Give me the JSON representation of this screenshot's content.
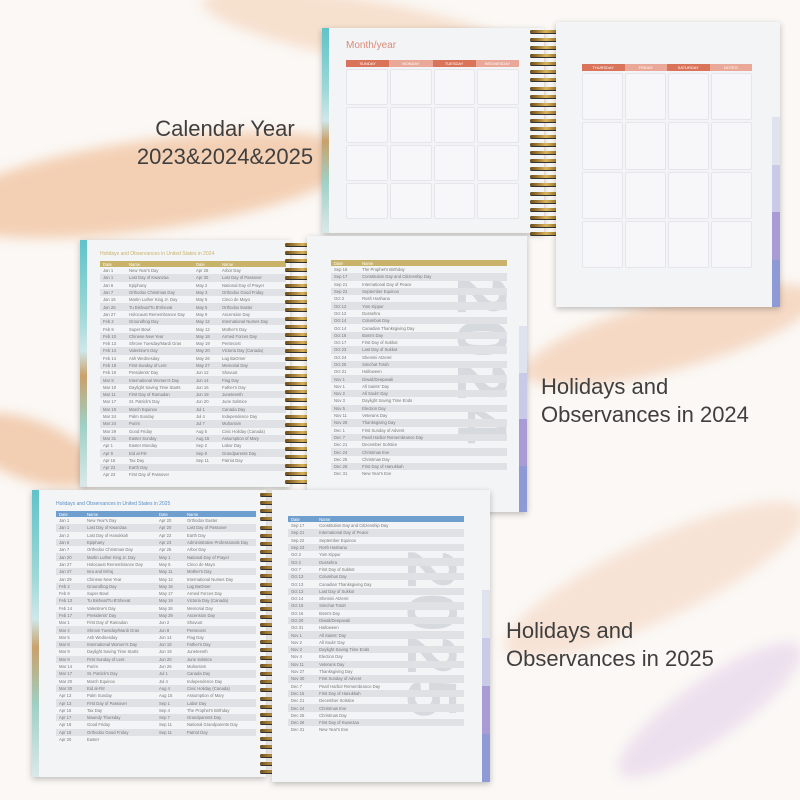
{
  "captions": {
    "calendar": "Calendar Year\n2023&2024&2025",
    "h2024": "Holidays and\nObservances in 2024",
    "h2025": "Holidays and\nObservances in 2025"
  },
  "colors": {
    "calendar_header_dark": "#d9735a",
    "calendar_header_light": "#e9a898",
    "table_2024_header": "#c9b26a",
    "table_2025_header": "#6f9fce",
    "background_stroke": "#f2c6a5"
  },
  "calendar": {
    "title": "Month/year",
    "left_days": [
      "SUNDAY",
      "MONDAY",
      "TUESDAY",
      "WEDNESDAY"
    ],
    "right_days": [
      "THURSDAY",
      "FRIDAY",
      "SATURDAY",
      "NOTES"
    ]
  },
  "h2024": {
    "title": "Holidays and Observances in United States in 2024",
    "year": "2024",
    "headers": [
      "Date",
      "Name",
      "Date",
      "Name"
    ],
    "left_rows": [
      [
        "Jan 1",
        "New Year's Day",
        "Apr 26",
        "Arbor Day"
      ],
      [
        "Jan 1",
        "Last Day of Kwanzaa",
        "Apr 30",
        "Last Day of Passover"
      ],
      [
        "Jan 6",
        "Epiphany",
        "May 2",
        "National Day of Prayer"
      ],
      [
        "Jan 7",
        "Orthodox Christmas Day",
        "May 3",
        "Orthodox Good Friday"
      ],
      [
        "Jan 15",
        "Martin Luther King Jr. Day",
        "May 5",
        "Cinco de Mayo"
      ],
      [
        "Jan 25",
        "Tu Bishvat/Tu B'Shevat",
        "May 5",
        "Orthodox Easter"
      ],
      [
        "Jan 27",
        "Holocaust Remembrance Day",
        "May 9",
        "Ascension Day"
      ],
      [
        "Feb 2",
        "Groundhog Day",
        "May 12",
        "International Nurses Day"
      ],
      [
        "Feb 9",
        "Super Bowl",
        "May 12",
        "Mother's Day"
      ],
      [
        "Feb 10",
        "Chinese New Year",
        "May 18",
        "Armed Forces Day"
      ],
      [
        "Feb 13",
        "Shrove Tuesday/Mardi Gras",
        "May 19",
        "Pentecost"
      ],
      [
        "Feb 14",
        "Valentine's Day",
        "May 20",
        "Victoria Day (Canada)"
      ],
      [
        "Feb 14",
        "Ash Wednesday",
        "May 26",
        "Lag BaOmer"
      ],
      [
        "Feb 18",
        "First Sunday of Lent",
        "May 27",
        "Memorial Day"
      ],
      [
        "Feb 19",
        "Presidents' Day",
        "Jun 12",
        "Shavuot"
      ],
      [
        "Mar 8",
        "International Women's Day",
        "Jun 14",
        "Flag Day"
      ],
      [
        "Mar 10",
        "Daylight Saving Time Starts",
        "Jun 16",
        "Father's Day"
      ],
      [
        "Mar 11",
        "First Day of Ramadan",
        "Jun 19",
        "Juneteenth"
      ],
      [
        "Mar 17",
        "St. Patrick's Day",
        "Jun 20",
        "June Solstice"
      ],
      [
        "Mar 19",
        "March Equinox",
        "Jul 1",
        "Canada Day"
      ],
      [
        "Mar 24",
        "Palm Sunday",
        "Jul 4",
        "Independence Day"
      ],
      [
        "Mar 24",
        "Purim",
        "Jul 7",
        "Muharram"
      ],
      [
        "Mar 29",
        "Good Friday",
        "Aug 5",
        "Civic Holiday (Canada)"
      ],
      [
        "Mar 31",
        "Easter Sunday",
        "Aug 15",
        "Assumption of Mary"
      ],
      [
        "Apr 1",
        "Easter Monday",
        "Sep 2",
        "Labor Day"
      ],
      [
        "Apr 9",
        "Eid al-Fitr",
        "Sep 8",
        "Grandparents Day"
      ],
      [
        "Apr 15",
        "Tax Day",
        "Sep 11",
        "Patriot Day"
      ],
      [
        "Apr 22",
        "Earth Day",
        "",
        ""
      ],
      [
        "Apr 23",
        "First Day of Passover",
        "",
        ""
      ]
    ],
    "right_rows": [
      [
        "Sep 16",
        "The Prophet's Birthday"
      ],
      [
        "Sep 17",
        "Constitution Day and Citizenship Day"
      ],
      [
        "Sep 21",
        "International Day of Peace"
      ],
      [
        "Sep 22",
        "September Equinox"
      ],
      [
        "Oct 3",
        "Rosh Hashana"
      ],
      [
        "Oct 12",
        "Yom Kippur"
      ],
      [
        "Oct 12",
        "Dussehra"
      ],
      [
        "Oct 14",
        "Columbus Day"
      ],
      [
        "Oct 14",
        "Canadian Thanksgiving Day"
      ],
      [
        "Oct 16",
        "Boss's Day"
      ],
      [
        "Oct 17",
        "First Day of Sukkot"
      ],
      [
        "Oct 23",
        "Last Day of Sukkot"
      ],
      [
        "Oct 24",
        "Shemini Atzeret"
      ],
      [
        "Oct 25",
        "Simchat Torah"
      ],
      [
        "Oct 31",
        "Halloween"
      ],
      [
        "Nov 1",
        "Diwali/Deepavali"
      ],
      [
        "Nov 1",
        "All Saints' Day"
      ],
      [
        "Nov 2",
        "All Souls' Day"
      ],
      [
        "Nov 3",
        "Daylight Saving Time Ends"
      ],
      [
        "Nov 5",
        "Election Day"
      ],
      [
        "Nov 11",
        "Veterans Day"
      ],
      [
        "Nov 28",
        "Thanksgiving Day"
      ],
      [
        "Dec 1",
        "First Sunday of Advent"
      ],
      [
        "Dec 7",
        "Pearl Harbor Remembrance Day"
      ],
      [
        "Dec 21",
        "December Solstice"
      ],
      [
        "Dec 24",
        "Christmas Eve"
      ],
      [
        "Dec 25",
        "Christmas Day"
      ],
      [
        "Dec 26",
        "First Day of Hanukkah"
      ],
      [
        "Dec 31",
        "New Year's Eve"
      ]
    ]
  },
  "h2025": {
    "title": "Holidays and Observances in United States in 2025",
    "year": "2025",
    "headers": [
      "Date",
      "Name",
      "Date",
      "Name"
    ],
    "left_rows": [
      [
        "Jan 1",
        "New Year's Day",
        "Apr 20",
        "Orthodox Easter"
      ],
      [
        "Jan 1",
        "Last Day of Kwanzaa",
        "Apr 20",
        "Last Day of Passover"
      ],
      [
        "Jan 2",
        "Last Day of Hanukkah",
        "Apr 22",
        "Earth Day"
      ],
      [
        "Jan 6",
        "Epiphany",
        "Apr 23",
        "Administrative Professionals Day"
      ],
      [
        "Jan 7",
        "Orthodox Christmas Day",
        "Apr 25",
        "Arbor Day"
      ],
      [
        "Jan 20",
        "Martin Luther King Jr. Day",
        "May 1",
        "National Day of Prayer"
      ],
      [
        "Jan 27",
        "Holocaust Remembrance Day",
        "May 5",
        "Cinco de Mayo"
      ],
      [
        "Jan 27",
        "Isra and Mi'raj",
        "May 11",
        "Mother's Day"
      ],
      [
        "Jan 29",
        "Chinese New Year",
        "May 12",
        "International Nurses Day"
      ],
      [
        "Feb 2",
        "Groundhog Day",
        "May 16",
        "Lag BaOmer"
      ],
      [
        "Feb 9",
        "Super Bowl",
        "May 17",
        "Armed Forces Day"
      ],
      [
        "Feb 13",
        "Tu Bishvat/Tu B'Shevat",
        "May 19",
        "Victoria Day (Canada)"
      ],
      [
        "Feb 14",
        "Valentine's Day",
        "May 26",
        "Memorial Day"
      ],
      [
        "Feb 17",
        "Presidents' Day",
        "May 29",
        "Ascension Day"
      ],
      [
        "Mar 1",
        "First Day of Ramadan",
        "Jun 2",
        "Shavuot"
      ],
      [
        "Mar 4",
        "Shrove Tuesday/Mardi Gras",
        "Jun 8",
        "Pentecost"
      ],
      [
        "Mar 5",
        "Ash Wednesday",
        "Jun 14",
        "Flag Day"
      ],
      [
        "Mar 8",
        "International Women's Day",
        "Jun 15",
        "Father's Day"
      ],
      [
        "Mar 9",
        "Daylight Saving Time Starts",
        "Jun 19",
        "Juneteenth"
      ],
      [
        "Mar 9",
        "First Sunday of Lent",
        "Jun 20",
        "June Solstice"
      ],
      [
        "Mar 14",
        "Purim",
        "Jun 26",
        "Muharram"
      ],
      [
        "Mar 17",
        "St. Patrick's Day",
        "Jul 1",
        "Canada Day"
      ],
      [
        "Mar 20",
        "March Equinox",
        "Jul 4",
        "Independence Day"
      ],
      [
        "Mar 30",
        "Eid al-Fitr",
        "Aug 4",
        "Civic Holiday (Canada)"
      ],
      [
        "Apr 13",
        "Palm Sunday",
        "Aug 15",
        "Assumption of Mary"
      ],
      [
        "Apr 13",
        "First Day of Passover",
        "Sep 1",
        "Labor Day"
      ],
      [
        "Apr 15",
        "Tax Day",
        "Sep 4",
        "The Prophet's Birthday"
      ],
      [
        "Apr 17",
        "Maundy Thursday",
        "Sep 7",
        "Grandparents Day"
      ],
      [
        "Apr 18",
        "Good Friday",
        "Sep 11",
        "National Grandparents Day"
      ],
      [
        "Apr 18",
        "Orthodox Good Friday",
        "Sep 11",
        "Patriot Day"
      ],
      [
        "Apr 20",
        "Easter",
        "",
        ""
      ]
    ],
    "right_rows": [
      [
        "Sep 17",
        "Constitution Day and Citizenship Day"
      ],
      [
        "Sep 21",
        "International Day of Peace"
      ],
      [
        "Sep 22",
        "September Equinox"
      ],
      [
        "Sep 23",
        "Rosh Hashana"
      ],
      [
        "Oct 2",
        "Yom Kippur"
      ],
      [
        "Oct 2",
        "Dussehra"
      ],
      [
        "Oct 7",
        "First Day of Sukkot"
      ],
      [
        "Oct 13",
        "Columbus Day"
      ],
      [
        "Oct 13",
        "Canadian Thanksgiving Day"
      ],
      [
        "Oct 13",
        "Last Day of Sukkot"
      ],
      [
        "Oct 14",
        "Shemini Atzeret"
      ],
      [
        "Oct 15",
        "Simchat Torah"
      ],
      [
        "Oct 16",
        "Boss's Day"
      ],
      [
        "Oct 20",
        "Diwali/Deepavali"
      ],
      [
        "Oct 31",
        "Halloween"
      ],
      [
        "Nov 1",
        "All Saints' Day"
      ],
      [
        "Nov 2",
        "All Souls' Day"
      ],
      [
        "Nov 2",
        "Daylight Saving Time Ends"
      ],
      [
        "Nov 4",
        "Election Day"
      ],
      [
        "Nov 11",
        "Veterans Day"
      ],
      [
        "Nov 27",
        "Thanksgiving Day"
      ],
      [
        "Nov 30",
        "First Sunday of Advent"
      ],
      [
        "Dec 7",
        "Pearl Harbor Remembrance Day"
      ],
      [
        "Dec 15",
        "First Day of Hanukkah"
      ],
      [
        "Dec 21",
        "December Solstice"
      ],
      [
        "Dec 24",
        "Christmas Eve"
      ],
      [
        "Dec 25",
        "Christmas Day"
      ],
      [
        "Dec 26",
        "First Day of Kwanzaa"
      ],
      [
        "Dec 31",
        "New Year's Eve"
      ]
    ]
  }
}
